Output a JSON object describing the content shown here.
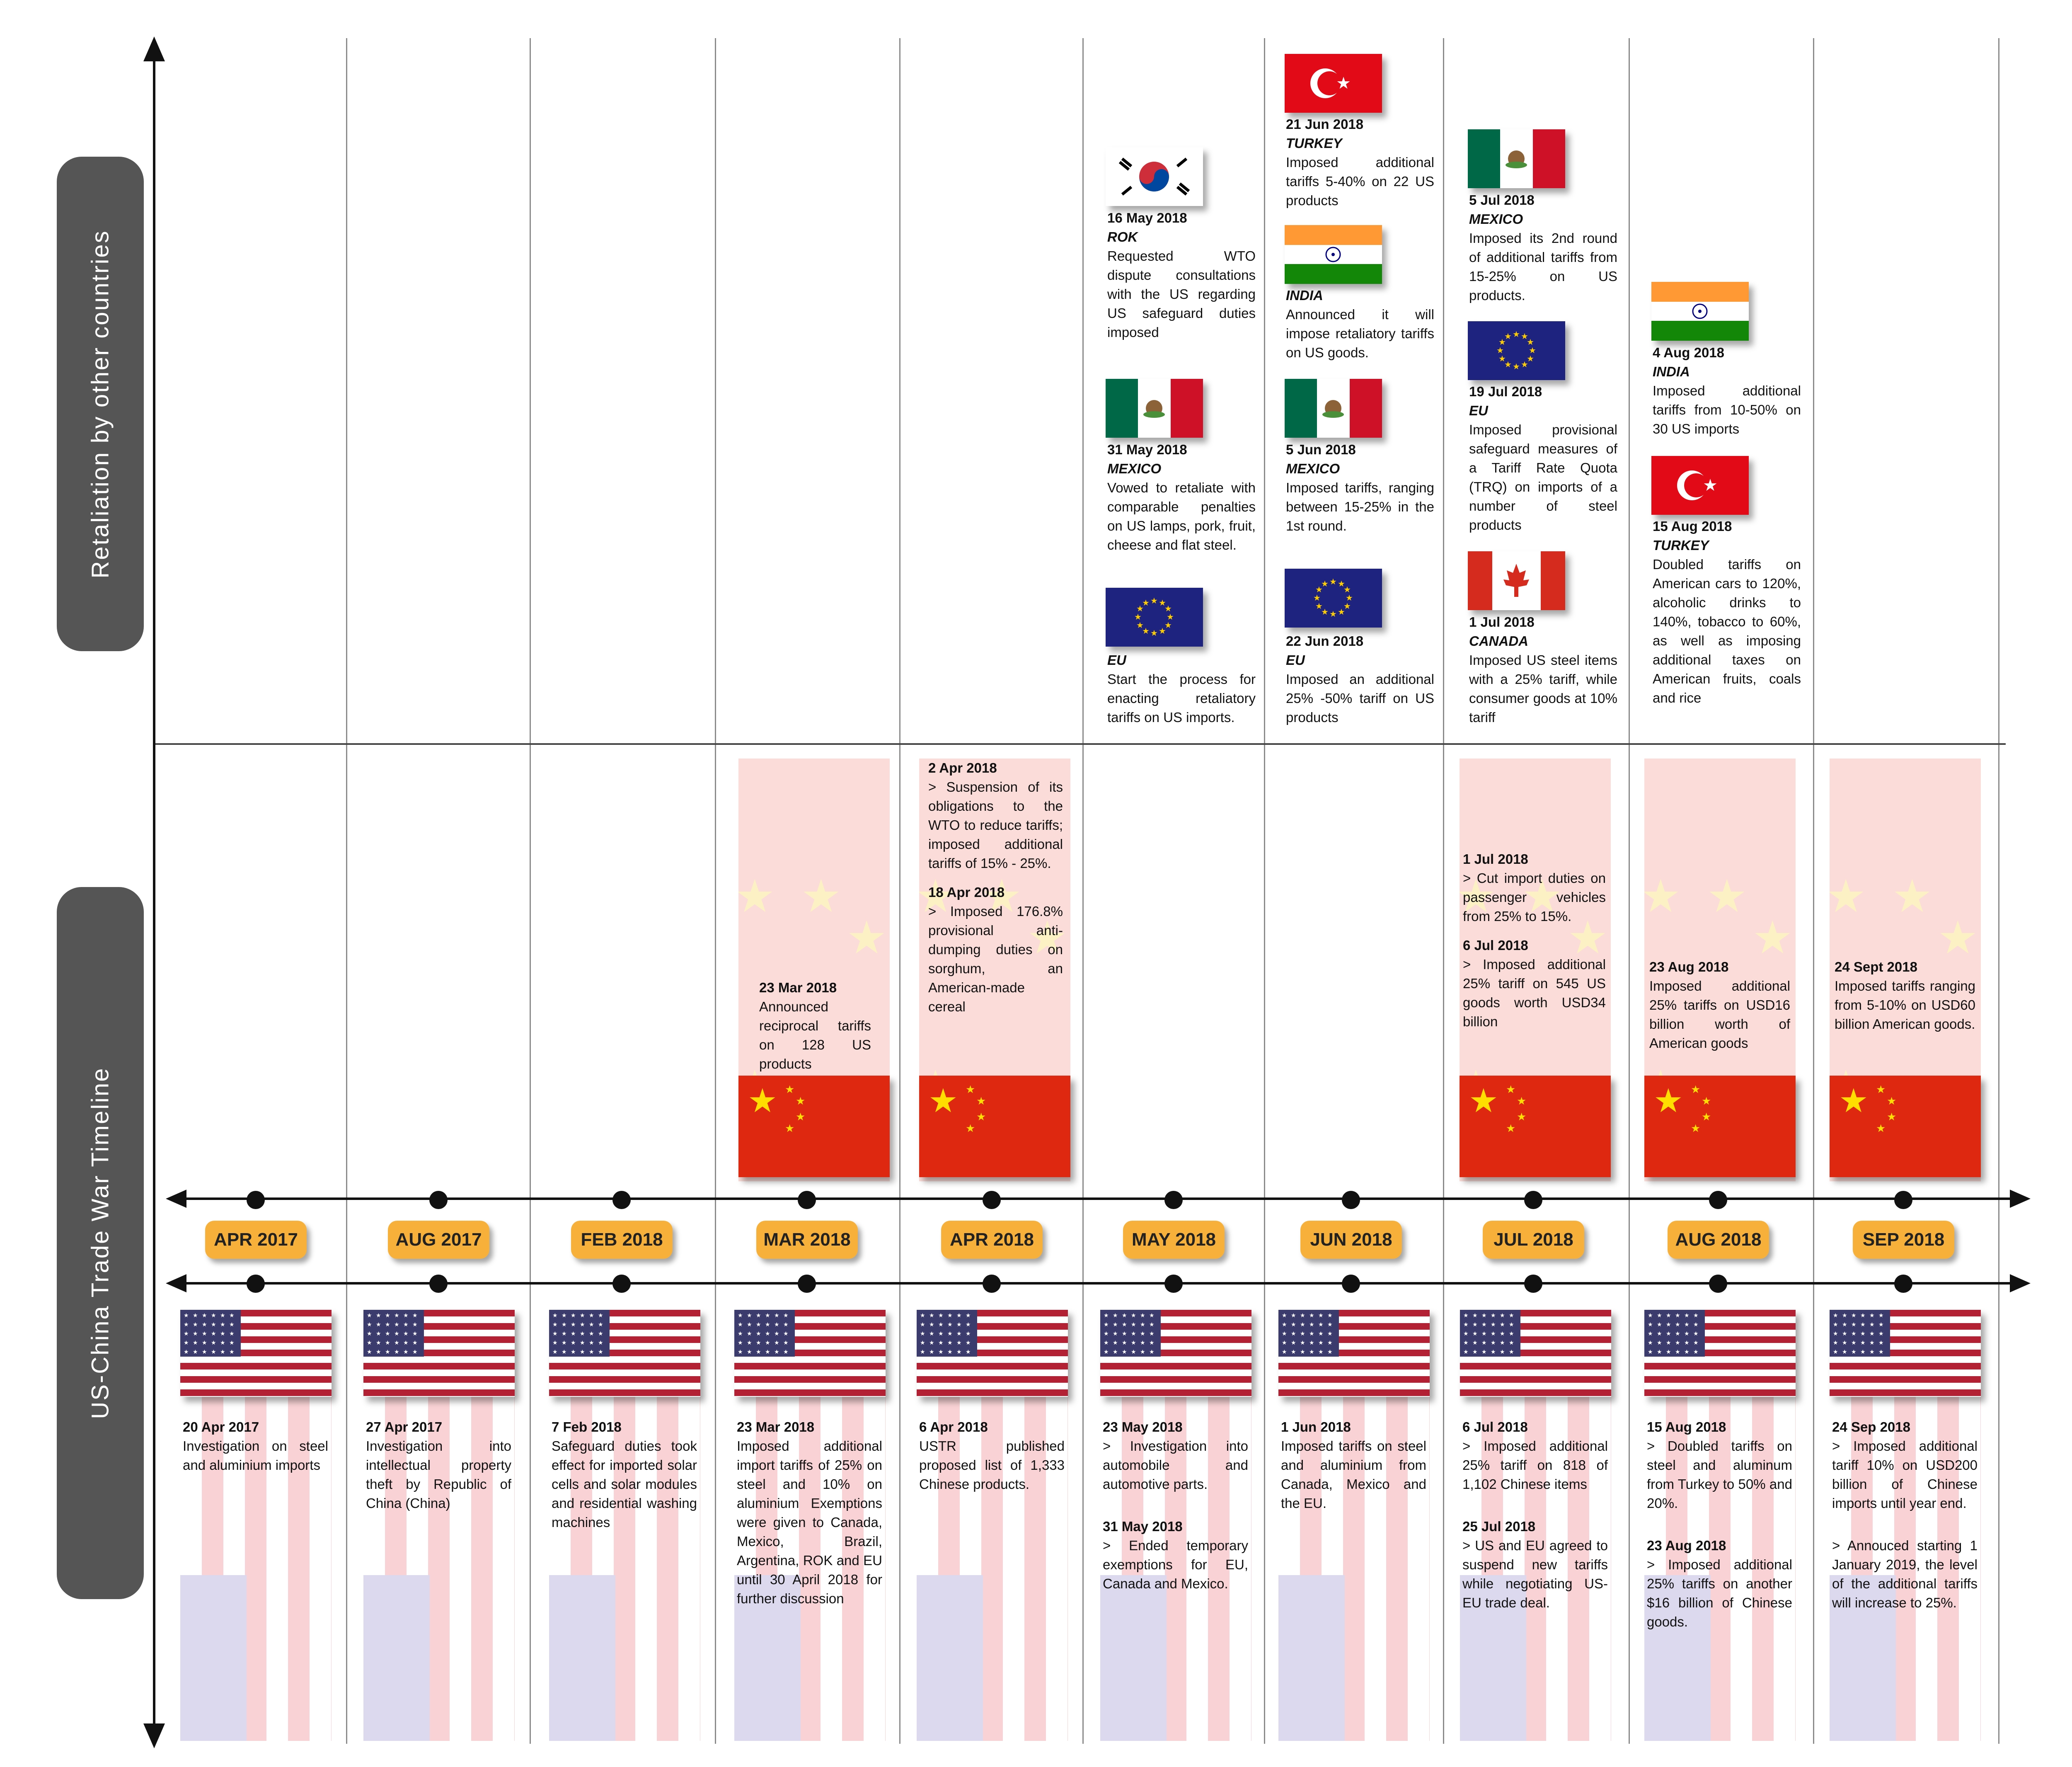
{
  "side_labels": {
    "top": "Retaliation by other countries",
    "bottom": "US-China Trade War Timeline"
  },
  "months": [
    "APR 2017",
    "AUG 2017",
    "FEB 2018",
    "MAR 2018",
    "APR 2018",
    "MAY 2018",
    "JUN 2018",
    "JUL 2018",
    "AUG 2018",
    "SEP 2018"
  ],
  "colors": {
    "month_badge": "#f7b13a",
    "china_red": "#de2910",
    "us_blue": "#3c3b6e",
    "us_red": "#b22234",
    "eu_blue": "#1d237f",
    "mexico_green": "#006847",
    "turkey_red": "#e30a17",
    "india_saffron": "#ff9933",
    "india_green": "#138808",
    "canada_red": "#d52b1e"
  },
  "retaliation": {
    "may": [
      {
        "flag": "south-korea-flag",
        "date": "16 May 2018",
        "country": "ROK",
        "body": "Requested WTO dispute consultations with the US regarding US safeguard duties imposed"
      },
      {
        "flag": "mexico-flag",
        "date": "31 May 2018",
        "country": "MEXICO",
        "body": "Vowed to retaliate with comparable penalties on US lamps, pork, fruit, cheese and flat steel."
      },
      {
        "flag": "eu-flag",
        "date": "",
        "country": "EU",
        "body": "Start the process for enacting retaliatory tariffs on US imports."
      }
    ],
    "jun": [
      {
        "flag": "turkey-flag",
        "date": "21 Jun 2018",
        "country": "TURKEY",
        "body": "Imposed additional tariffs 5-40% on 22 US products"
      },
      {
        "flag": "india-flag",
        "date": "",
        "country": "INDIA",
        "body": "Announced it will impose retaliatory tariffs on US goods."
      },
      {
        "flag": "mexico-flag",
        "date": "5 Jun 2018",
        "country": "MEXICO",
        "body": "Imposed tariffs, ranging between 15-25% in the 1st round."
      },
      {
        "flag": "eu-flag",
        "date": "22 Jun 2018",
        "country": "EU",
        "body": "Imposed an additional 25% -50% tariff on US products"
      }
    ],
    "jul": [
      {
        "flag": "mexico-flag",
        "date": "5 Jul 2018",
        "country": "MEXICO",
        "body": "Imposed its 2nd round of additional tariffs from 15-25% on US products."
      },
      {
        "flag": "eu-flag",
        "date": "19 Jul 2018",
        "country": "EU",
        "body": "Imposed provisional safeguard measures of a Tariff Rate Quota (TRQ) on imports of a number of steel products"
      },
      {
        "flag": "canada-flag",
        "date": "1 Jul 2018",
        "country": "CANADA",
        "body": "Imposed US steel items with a 25% tariff, while consumer goods at 10% tariff"
      }
    ],
    "aug": [
      {
        "flag": "india-flag",
        "date": "4 Aug 2018",
        "country": "INDIA",
        "body": "Imposed additional tariffs from 10-50% on 30 US imports"
      },
      {
        "flag": "turkey-flag",
        "date": "15 Aug 2018",
        "country": "TURKEY",
        "body": "Doubled tariffs on American cars to 120%, alcoholic drinks to 140%, tobacco to 60%, as well as imposing additional taxes on American fruits, coals and rice"
      }
    ]
  },
  "china": {
    "mar": [
      {
        "date": "23 Mar 2018",
        "lines": [
          "Announced reciprocal tariffs on 128 US products"
        ]
      }
    ],
    "apr": [
      {
        "date": "2 Apr 2018",
        "lines": [
          "> Suspension of its obligations to the WTO to reduce tariffs; imposed additional tariffs of 15% - 25%."
        ]
      },
      {
        "date": "18 Apr 2018",
        "lines": [
          "> Imposed 176.8% provisional anti-dumping duties on sorghum, an American-made cereal"
        ]
      }
    ],
    "jul": [
      {
        "date": "1 Jul 2018",
        "lines": [
          "> Cut import duties on passenger vehicles from 25% to 15%."
        ]
      },
      {
        "date": "6 Jul 2018",
        "lines": [
          "> Imposed additional 25% tariff on 545 US goods worth USD34 billion"
        ]
      }
    ],
    "aug": [
      {
        "date": "23 Aug 2018",
        "lines": [
          "Imposed additional 25% tariffs on USD16 billion worth of American goods"
        ]
      }
    ],
    "sep": [
      {
        "date": "24 Sept 2018",
        "lines": [
          "Imposed tariffs ranging from 5-10% on USD60 billion American goods."
        ]
      }
    ]
  },
  "us": [
    {
      "entries": [
        {
          "date": "20 Apr 2017",
          "body": "Investigation on steel and aluminium imports"
        }
      ]
    },
    {
      "entries": [
        {
          "date": "27 Apr 2017",
          "body": "Investigation into intellectual property theft by Republic of China (China)"
        }
      ]
    },
    {
      "entries": [
        {
          "date": "7 Feb 2018",
          "body": "Safeguard duties took effect for imported solar cells and solar modules and residential washing machines"
        }
      ]
    },
    {
      "entries": [
        {
          "date": "23 Mar 2018",
          "body": "Imposed additional import tariffs of 25% on steel and 10% on aluminium Exemptions were given to Canada, Mexico, Brazil, Argentina, ROK and EU until 30 April 2018 for further discussion"
        }
      ]
    },
    {
      "entries": [
        {
          "date": "6 Apr 2018",
          "body": "USTR published proposed list of 1,333 Chinese products."
        }
      ]
    },
    {
      "entries": [
        {
          "date": "23 May 2018",
          "body": "> Investigation into automobile and automotive parts."
        },
        {
          "date": "31 May 2018",
          "body": "> Ended temporary exemptions for EU, Canada and Mexico."
        }
      ]
    },
    {
      "entries": [
        {
          "date": "1 Jun 2018",
          "body": "Imposed tariffs on steel and aluminium from Canada, Mexico and the EU."
        }
      ]
    },
    {
      "entries": [
        {
          "date": "6 Jul 2018",
          "body": "> Imposed additional 25% tariff on 818 of 1,102 Chinese items"
        },
        {
          "date": "25 Jul 2018",
          "body": "> US and EU agreed to suspend new tariffs while negotiating US-EU trade deal."
        }
      ]
    },
    {
      "entries": [
        {
          "date": "15 Aug 2018",
          "body": "> Doubled tariffs on steel and aluminum from Turkey to 50% and 20%."
        },
        {
          "date": "23 Aug 2018",
          "body": "> Imposed additional 25% tariffs on another $16 billion of Chinese goods."
        }
      ]
    },
    {
      "entries": [
        {
          "date": "24 Sep 2018",
          "body": "> Imposed additional tariff 10% on USD200 billion of Chinese imports until year end."
        },
        {
          "date": "",
          "body": "> Annouced starting 1 January 2019, the level of the additional tariffs will increase to 25%."
        }
      ]
    }
  ]
}
